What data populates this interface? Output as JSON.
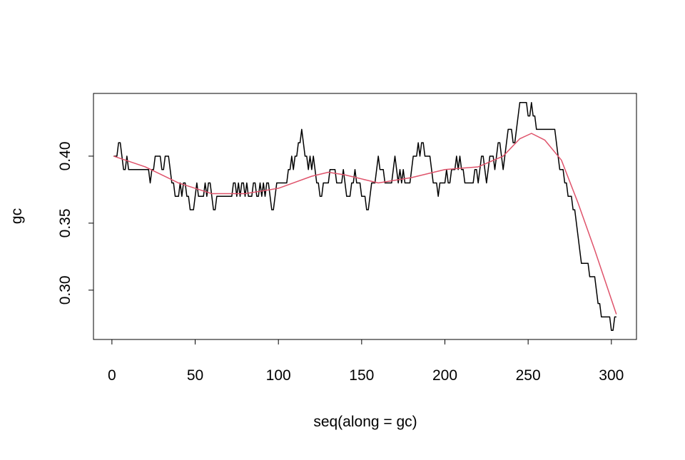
{
  "chart_data": {
    "type": "line",
    "xlabel": "seq(along = gc)",
    "ylabel": "gc",
    "x": [
      1,
      2,
      3,
      4,
      5,
      6,
      7,
      8,
      9,
      10,
      11,
      12,
      13,
      14,
      15,
      16,
      17,
      18,
      19,
      20,
      21,
      22,
      23,
      24,
      25,
      26,
      27,
      28,
      29,
      30,
      31,
      32,
      33,
      34,
      35,
      36,
      37,
      38,
      39,
      40,
      41,
      42,
      43,
      44,
      45,
      46,
      47,
      48,
      49,
      50,
      51,
      52,
      53,
      54,
      55,
      56,
      57,
      58,
      59,
      60,
      61,
      62,
      63,
      64,
      65,
      66,
      67,
      68,
      69,
      70,
      71,
      72,
      73,
      74,
      75,
      76,
      77,
      78,
      79,
      80,
      81,
      82,
      83,
      84,
      85,
      86,
      87,
      88,
      89,
      90,
      91,
      92,
      93,
      94,
      95,
      96,
      97,
      98,
      99,
      100,
      101,
      102,
      103,
      104,
      105,
      106,
      107,
      108,
      109,
      110,
      111,
      112,
      113,
      114,
      115,
      116,
      117,
      118,
      119,
      120,
      121,
      122,
      123,
      124,
      125,
      126,
      127,
      128,
      129,
      130,
      131,
      132,
      133,
      134,
      135,
      136,
      137,
      138,
      139,
      140,
      141,
      142,
      143,
      144,
      145,
      146,
      147,
      148,
      149,
      150,
      151,
      152,
      153,
      154,
      155,
      156,
      157,
      158,
      159,
      160,
      161,
      162,
      163,
      164,
      165,
      166,
      167,
      168,
      169,
      170,
      171,
      172,
      173,
      174,
      175,
      176,
      177,
      178,
      179,
      180,
      181,
      182,
      183,
      184,
      185,
      186,
      187,
      188,
      189,
      190,
      191,
      192,
      193,
      194,
      195,
      196,
      197,
      198,
      199,
      200,
      201,
      202,
      203,
      204,
      205,
      206,
      207,
      208,
      209,
      210,
      211,
      212,
      213,
      214,
      215,
      216,
      217,
      218,
      219,
      220,
      221,
      222,
      223,
      224,
      225,
      226,
      227,
      228,
      229,
      230,
      231,
      232,
      233,
      234,
      235,
      236,
      237,
      238,
      239,
      240,
      241,
      242,
      243,
      244,
      245,
      246,
      247,
      248,
      249,
      250,
      251,
      252,
      253,
      254,
      255,
      256,
      257,
      258,
      259,
      260,
      261,
      262,
      263,
      264,
      265,
      266,
      267,
      268,
      269,
      270,
      271,
      272,
      273,
      274,
      275,
      276,
      277,
      278,
      279,
      280,
      281,
      282,
      283,
      284,
      285,
      286,
      287,
      288,
      289,
      290,
      291,
      292,
      293,
      294,
      295,
      296,
      297,
      298,
      299,
      300,
      301,
      302,
      303
    ],
    "series": [
      {
        "color": "#000000",
        "values": [
          0.4,
          0.4,
          0.4,
          0.41,
          0.41,
          0.4,
          0.39,
          0.39,
          0.4,
          0.39,
          0.39,
          0.39,
          0.39,
          0.39,
          0.39,
          0.39,
          0.39,
          0.39,
          0.39,
          0.39,
          0.39,
          0.39,
          0.38,
          0.39,
          0.39,
          0.4,
          0.4,
          0.4,
          0.4,
          0.39,
          0.39,
          0.4,
          0.4,
          0.4,
          0.39,
          0.38,
          0.38,
          0.37,
          0.37,
          0.37,
          0.38,
          0.37,
          0.38,
          0.38,
          0.37,
          0.37,
          0.36,
          0.36,
          0.36,
          0.37,
          0.38,
          0.37,
          0.37,
          0.37,
          0.37,
          0.38,
          0.37,
          0.38,
          0.38,
          0.37,
          0.36,
          0.36,
          0.37,
          0.37,
          0.37,
          0.37,
          0.37,
          0.37,
          0.37,
          0.37,
          0.37,
          0.37,
          0.38,
          0.38,
          0.37,
          0.38,
          0.37,
          0.38,
          0.38,
          0.37,
          0.38,
          0.37,
          0.37,
          0.37,
          0.38,
          0.38,
          0.37,
          0.37,
          0.38,
          0.37,
          0.38,
          0.37,
          0.38,
          0.38,
          0.37,
          0.36,
          0.36,
          0.37,
          0.38,
          0.38,
          0.38,
          0.38,
          0.38,
          0.38,
          0.38,
          0.39,
          0.39,
          0.4,
          0.39,
          0.4,
          0.4,
          0.41,
          0.41,
          0.42,
          0.41,
          0.4,
          0.4,
          0.39,
          0.4,
          0.39,
          0.4,
          0.39,
          0.38,
          0.38,
          0.37,
          0.37,
          0.38,
          0.38,
          0.38,
          0.38,
          0.39,
          0.39,
          0.39,
          0.39,
          0.38,
          0.38,
          0.38,
          0.38,
          0.39,
          0.38,
          0.37,
          0.37,
          0.37,
          0.38,
          0.38,
          0.39,
          0.38,
          0.38,
          0.38,
          0.37,
          0.37,
          0.37,
          0.36,
          0.36,
          0.37,
          0.38,
          0.38,
          0.38,
          0.39,
          0.4,
          0.39,
          0.39,
          0.39,
          0.38,
          0.38,
          0.38,
          0.38,
          0.38,
          0.39,
          0.4,
          0.39,
          0.38,
          0.39,
          0.38,
          0.39,
          0.38,
          0.38,
          0.38,
          0.38,
          0.39,
          0.4,
          0.4,
          0.4,
          0.41,
          0.4,
          0.41,
          0.41,
          0.4,
          0.4,
          0.4,
          0.4,
          0.39,
          0.38,
          0.38,
          0.38,
          0.37,
          0.38,
          0.38,
          0.38,
          0.38,
          0.39,
          0.38,
          0.38,
          0.39,
          0.39,
          0.39,
          0.4,
          0.39,
          0.4,
          0.39,
          0.39,
          0.38,
          0.38,
          0.38,
          0.38,
          0.38,
          0.38,
          0.39,
          0.39,
          0.38,
          0.39,
          0.4,
          0.4,
          0.39,
          0.38,
          0.39,
          0.4,
          0.4,
          0.4,
          0.39,
          0.4,
          0.41,
          0.41,
          0.4,
          0.39,
          0.4,
          0.41,
          0.42,
          0.42,
          0.42,
          0.41,
          0.41,
          0.42,
          0.43,
          0.44,
          0.44,
          0.44,
          0.44,
          0.44,
          0.43,
          0.43,
          0.44,
          0.43,
          0.43,
          0.42,
          0.42,
          0.42,
          0.42,
          0.42,
          0.42,
          0.42,
          0.42,
          0.42,
          0.42,
          0.42,
          0.42,
          0.41,
          0.4,
          0.39,
          0.39,
          0.39,
          0.38,
          0.38,
          0.37,
          0.37,
          0.37,
          0.36,
          0.36,
          0.35,
          0.34,
          0.33,
          0.32,
          0.32,
          0.32,
          0.32,
          0.32,
          0.31,
          0.31,
          0.31,
          0.31,
          0.3,
          0.29,
          0.29,
          0.28,
          0.28,
          0.28,
          0.28,
          0.28,
          0.28,
          0.27,
          0.27,
          0.28,
          0.28
        ]
      },
      {
        "color": "#DF536B",
        "x": [
          1,
          20,
          40,
          60,
          80,
          100,
          120,
          130,
          140,
          160,
          180,
          200,
          220,
          235,
          245,
          252,
          260,
          270,
          280,
          290,
          303
        ],
        "values": [
          0.4,
          0.392,
          0.38,
          0.372,
          0.372,
          0.376,
          0.385,
          0.388,
          0.386,
          0.38,
          0.384,
          0.39,
          0.392,
          0.4,
          0.413,
          0.417,
          0.412,
          0.397,
          0.365,
          0.33,
          0.282
        ]
      }
    ],
    "xlim": [
      -11.08,
      315.08
    ],
    "ylim": [
      0.2632,
      0.4468
    ],
    "xticks": [
      0,
      50,
      100,
      150,
      200,
      250,
      300
    ],
    "yticks": [
      {
        "value": 0.3,
        "label": "0.30"
      },
      0.35,
      {
        "value": 0.4,
        "label": "0.40"
      }
    ]
  }
}
